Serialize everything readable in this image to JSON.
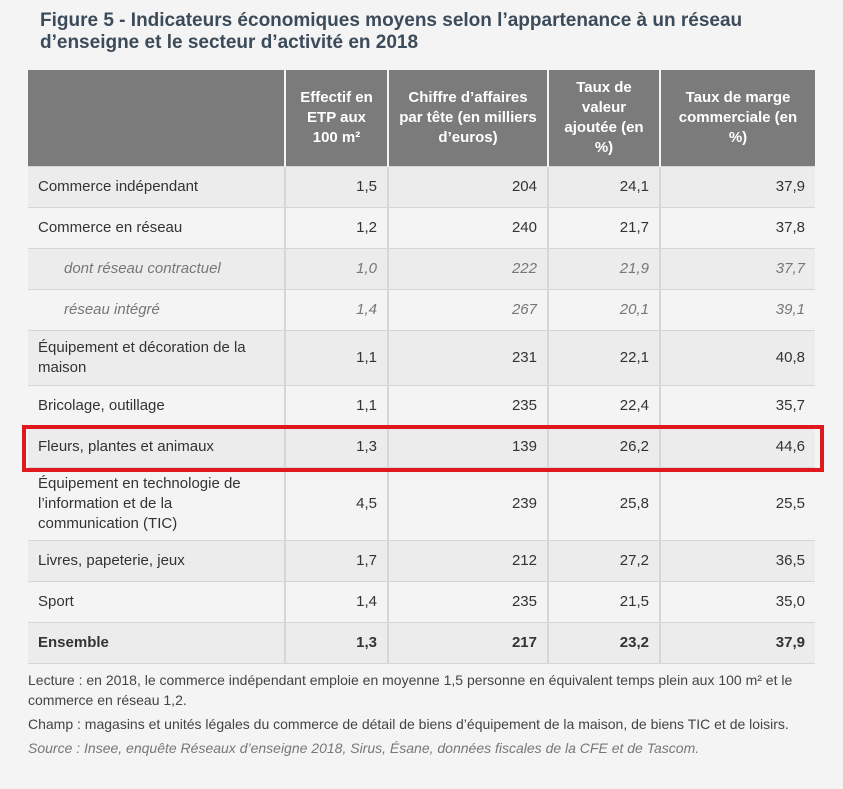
{
  "title": "Figure 5 - Indicateurs économiques moyens selon l’appartenance à un réseau d’enseigne et le secteur d’activité en 2018",
  "table": {
    "headers": [
      "",
      "Effectif en ETP aux 100 m²",
      "Chiffre d’affaires par tête (en milliers d’euros)",
      "Taux de valeur ajoutée (en %)",
      "Taux de marge commerciale (en %)"
    ],
    "rows": [
      {
        "label": "Commerce indépendant",
        "values": [
          "1,5",
          "204",
          "24,1",
          "37,9"
        ]
      },
      {
        "label": "Commerce en réseau",
        "values": [
          "1,2",
          "240",
          "21,7",
          "37,8"
        ]
      },
      {
        "label": "dont réseau contractuel",
        "values": [
          "1,0",
          "222",
          "21,9",
          "37,7"
        ]
      },
      {
        "label": "réseau intégré",
        "values": [
          "1,4",
          "267",
          "20,1",
          "39,1"
        ]
      },
      {
        "label": "Équipement et décoration de la maison",
        "values": [
          "1,1",
          "231",
          "22,1",
          "40,8"
        ]
      },
      {
        "label": "Bricolage, outillage",
        "values": [
          "1,1",
          "235",
          "22,4",
          "35,7"
        ]
      },
      {
        "label": "Fleurs, plantes et animaux",
        "values": [
          "1,3",
          "139",
          "26,2",
          "44,6"
        ]
      },
      {
        "label": "Équipement en technologie de l’information et de la communication (TIC)",
        "values": [
          "4,5",
          "239",
          "25,8",
          "25,5"
        ]
      },
      {
        "label": "Livres, papeterie, jeux",
        "values": [
          "1,7",
          "212",
          "27,2",
          "36,5"
        ]
      },
      {
        "label": "Sport",
        "values": [
          "1,4",
          "235",
          "21,5",
          "35,0"
        ]
      },
      {
        "label": "Ensemble",
        "values": [
          "1,3",
          "217",
          "23,2",
          "37,9"
        ]
      }
    ]
  },
  "notes": {
    "lecture": "Lecture : en 2018, le commerce indépendant emploie en moyenne 1,5 personne en équivalent temps plein aux 100 m² et le commerce en réseau 1,2.",
    "champ": "Champ : magasins et unités légales du commerce de détail de biens d’équipement de la maison, de biens TIC et de loisirs.",
    "source": "Source : Insee, enquête Réseaux d’enseigne 2018, Sirus, Ésane, données fiscales de la CFE et de Tascom."
  },
  "colors": {
    "highlight": "#e0191e",
    "header_bg": "#7b7b7b",
    "title": "#3c4b5a"
  }
}
